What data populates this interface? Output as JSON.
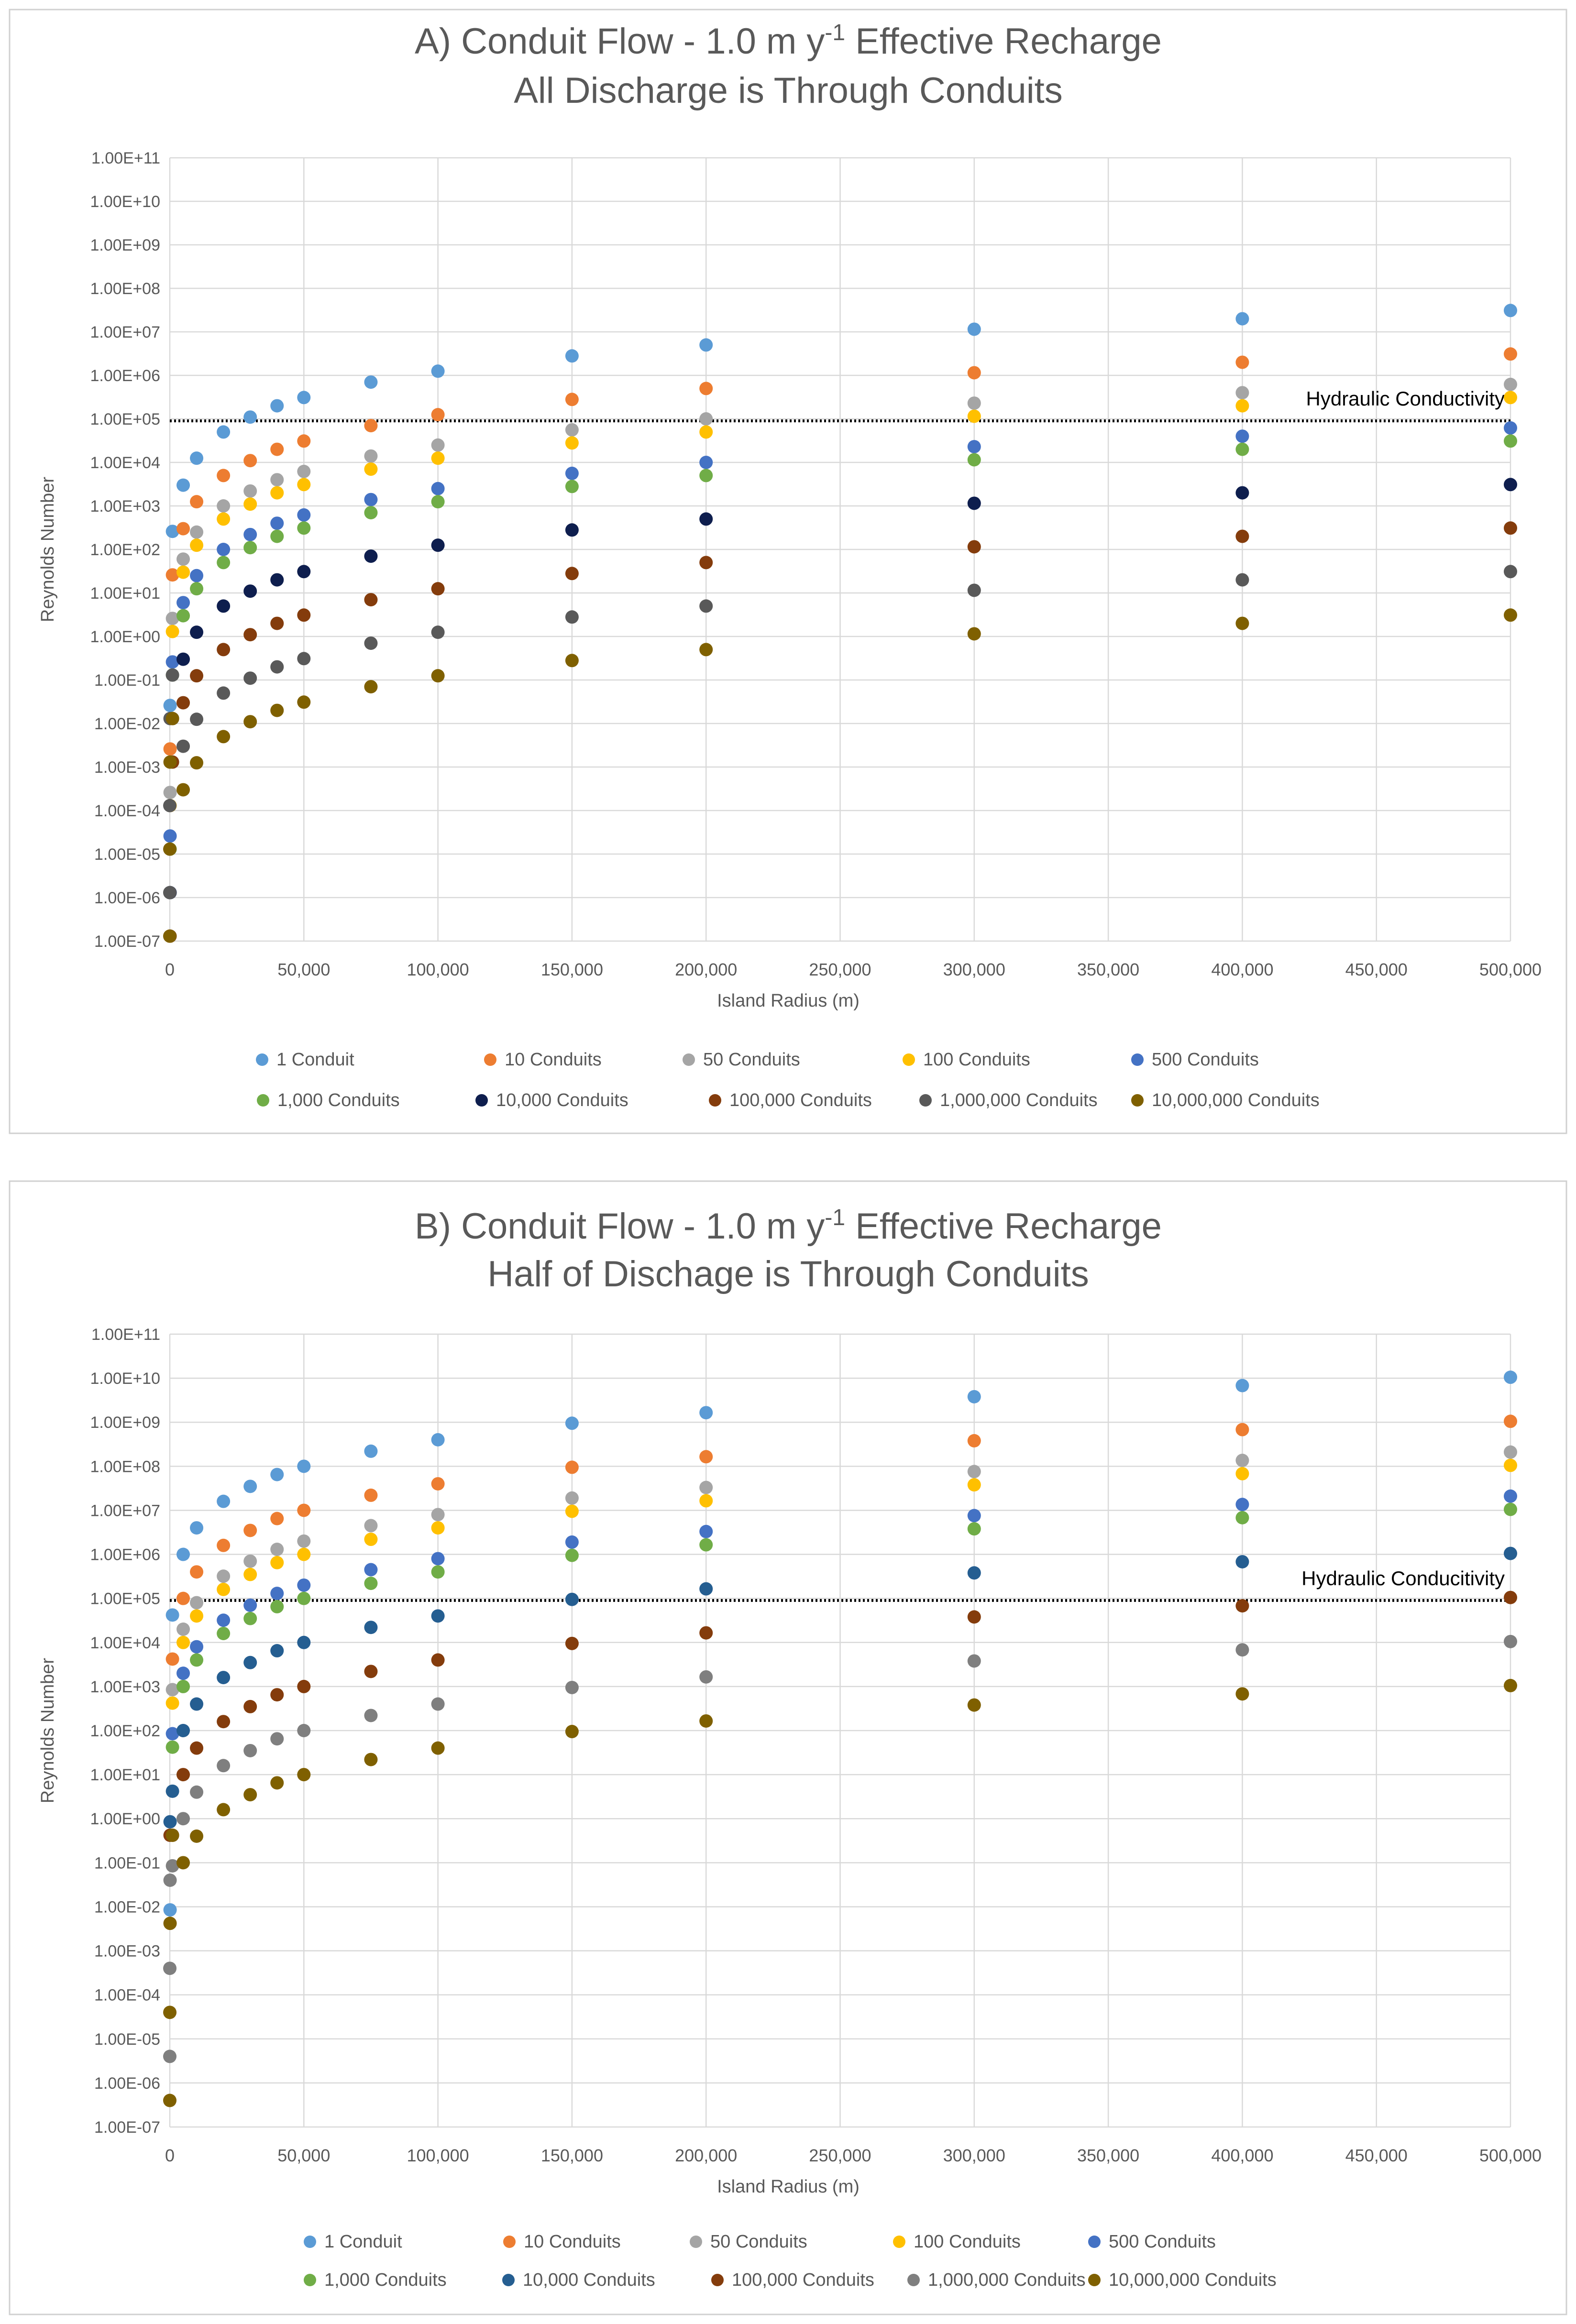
{
  "chart_data": [
    {
      "type": "scatter",
      "title_prefix": "A) Conduit Flow - 1.0 m y",
      "title_superscript": "-1",
      "title_suffix": " Effective Recharge",
      "subtitle": "All Discharge is Through Conduits",
      "xlabel": "Island Radius (m)",
      "ylabel": "Reynolds Number",
      "xlim": [
        0,
        500000
      ],
      "ylim_log10": [
        -7,
        11
      ],
      "x_ticks": [
        0,
        50000,
        100000,
        150000,
        200000,
        250000,
        300000,
        350000,
        400000,
        450000,
        500000
      ],
      "x_tick_labels": [
        "0",
        "50,000",
        "100,000",
        "150,000",
        "200,000",
        "250,000",
        "300,000",
        "350,000",
        "400,000",
        "450,000",
        "500,000"
      ],
      "y_tick_labels": [
        "1.00E+11",
        "1.00E+10",
        "1.00E+09",
        "1.00E+08",
        "1.00E+07",
        "1.00E+06",
        "1.00E+05",
        "1.00E+04",
        "1.00E+03",
        "1.00E+02",
        "1.00E+01",
        "1.00E+00",
        "1.00E-01",
        "1.00E-02",
        "1.00E-03",
        "1.00E-04",
        "1.00E-05",
        "1.00E-06",
        "1.00E-07"
      ],
      "reference_line": {
        "label": "Hydraulic Conductivity",
        "value": 90000
      },
      "x": [
        1,
        10,
        100,
        1000,
        5000,
        10000,
        20000,
        30000,
        40000,
        50000,
        75000,
        100000,
        150000,
        200000,
        300000,
        400000,
        500000
      ],
      "series": [
        {
          "name": "1 Conduit",
          "color": "#5B9BD5",
          "values": [
            null,
            null,
            0.026,
            260,
            3000,
            12500,
            50000,
            110000,
            200000,
            310000,
            700000,
            1250000,
            2800000,
            5000000,
            11500000,
            20000000,
            31000000
          ]
        },
        {
          "name": "10 Conduits",
          "color": "#ED7D31",
          "values": [
            null,
            null,
            0.0026,
            26,
            300,
            1250,
            5000,
            11000,
            20000,
            31000,
            70000,
            125000,
            280000,
            500000,
            1150000,
            2000000,
            3100000
          ]
        },
        {
          "name": "50 Conduits",
          "color": "#A5A5A5",
          "values": [
            null,
            null,
            0.00026,
            2.6,
            60,
            250,
            1000,
            2200,
            4000,
            6200,
            14000,
            25000,
            56000,
            100000,
            230000,
            400000,
            620000
          ]
        },
        {
          "name": "100 Conduits",
          "color": "#FFC000",
          "values": [
            null,
            null,
            0.00013,
            1.3,
            30,
            125,
            500,
            1100,
            2000,
            3100,
            7000,
            12500,
            28000,
            50000,
            115000,
            200000,
            310000
          ]
        },
        {
          "name": "500 Conduits",
          "color": "#4472C4",
          "values": [
            null,
            null,
            2.6e-05,
            0.26,
            6,
            25,
            100,
            220,
            400,
            620,
            1400,
            2500,
            5600,
            10000,
            23000,
            40000,
            62000
          ]
        },
        {
          "name": "1,000 Conduits",
          "color": "#70AD47",
          "values": [
            null,
            null,
            1.3e-05,
            0.13,
            3,
            12.5,
            50,
            110,
            200,
            310,
            700,
            1250,
            2800,
            5000,
            11500,
            20000,
            31000
          ]
        },
        {
          "name": "10,000 Conduits",
          "color": "#0E1E4E",
          "values": [
            null,
            null,
            1.3e-06,
            0.013,
            0.3,
            1.25,
            5,
            11,
            20,
            31,
            70,
            125,
            280,
            500,
            1150,
            2000,
            3100
          ]
        },
        {
          "name": "100,000 Conduits",
          "color": "#843C0C",
          "values": [
            null,
            null,
            1.3e-07,
            0.0013,
            0.03,
            0.125,
            0.5,
            1.1,
            2,
            3.1,
            7,
            12.5,
            28,
            50,
            115,
            200,
            310
          ]
        },
        {
          "name": "1,000,000 Conduits",
          "color": "#595959",
          "values": [
            1.3e-06,
            0.00013,
            0.013,
            0.13,
            0.003,
            0.0125,
            0.05,
            0.11,
            0.2,
            0.31,
            0.7,
            1.25,
            2.8,
            5,
            11.5,
            20,
            31
          ]
        },
        {
          "name": "10,000,000 Conduits",
          "color": "#7F6000",
          "values": [
            1.3e-07,
            1.3e-05,
            0.0013,
            0.013,
            0.0003,
            0.00125,
            0.005,
            0.011,
            0.02,
            0.031,
            0.07,
            0.125,
            0.28,
            0.5,
            1.15,
            2,
            3.1
          ]
        }
      ]
    },
    {
      "type": "scatter",
      "title_prefix": "B) Conduit Flow - 1.0 m y",
      "title_superscript": "-1",
      "title_suffix": " Effective Recharge",
      "subtitle": "Half of Dischage is Through Conduits",
      "xlabel": "Island Radius (m)",
      "ylabel": "Reynolds Number",
      "xlim": [
        0,
        500000
      ],
      "ylim_log10": [
        -7,
        11
      ],
      "x_ticks": [
        0,
        50000,
        100000,
        150000,
        200000,
        250000,
        300000,
        350000,
        400000,
        450000,
        500000
      ],
      "x_tick_labels": [
        "0",
        "50,000",
        "100,000",
        "150,000",
        "200,000",
        "250,000",
        "300,000",
        "350,000",
        "400,000",
        "450,000",
        "500,000"
      ],
      "y_tick_labels": [
        "1.00E+11",
        "1.00E+10",
        "1.00E+09",
        "1.00E+08",
        "1.00E+07",
        "1.00E+06",
        "1.00E+05",
        "1.00E+04",
        "1.00E+03",
        "1.00E+02",
        "1.00E+01",
        "1.00E+00",
        "1.00E-01",
        "1.00E-02",
        "1.00E-03",
        "1.00E-04",
        "1.00E-05",
        "1.00E-06",
        "1.00E-07"
      ],
      "reference_line": {
        "label": "Hydraulic Conducitivity",
        "value": 90000
      },
      "x": [
        1,
        10,
        100,
        1000,
        5000,
        10000,
        20000,
        30000,
        40000,
        50000,
        75000,
        100000,
        150000,
        200000,
        300000,
        400000,
        500000
      ],
      "series": [
        {
          "name": "1 Conduit",
          "color": "#5B9BD5",
          "values": [
            null,
            null,
            0.0085,
            42000,
            1000000,
            4000000,
            16000000,
            35000000,
            65000000,
            100000000,
            220000000,
            400000000,
            950000000,
            1650000000,
            3800000000,
            6800000000,
            10500000000
          ]
        },
        {
          "name": "10 Conduits",
          "color": "#ED7D31",
          "values": [
            null,
            null,
            null,
            4200,
            100000,
            400000,
            1600000,
            3500000,
            6500000,
            10000000,
            22000000,
            40000000,
            95000000,
            165000000,
            380000000,
            680000000,
            1050000000
          ]
        },
        {
          "name": "50 Conduits",
          "color": "#A5A5A5",
          "values": [
            null,
            null,
            null,
            850,
            20000,
            80000,
            320000,
            700000,
            1300000,
            2000000,
            4500000,
            8000000,
            19000000,
            33000000,
            76000000,
            136000000,
            210000000
          ]
        },
        {
          "name": "100 Conduits",
          "color": "#FFC000",
          "values": [
            null,
            null,
            null,
            420,
            10000,
            40000,
            160000,
            350000,
            650000,
            1000000,
            2200000,
            4000000,
            9500000,
            16500000,
            38000000,
            68000000,
            105000000
          ]
        },
        {
          "name": "500 Conduits",
          "color": "#4472C4",
          "values": [
            null,
            null,
            null,
            85,
            2000,
            8000,
            32000,
            70000,
            130000,
            200000,
            450000,
            800000,
            1900000,
            3300000,
            7600000,
            13600000,
            21000000
          ]
        },
        {
          "name": "1,000 Conduits",
          "color": "#70AD47",
          "values": [
            null,
            null,
            null,
            42,
            1000,
            4000,
            16000,
            35000,
            65000,
            100000,
            220000,
            400000,
            950000,
            1650000,
            3800000,
            6800000,
            10500000
          ]
        },
        {
          "name": "10,000 Conduits",
          "color": "#255E91",
          "values": [
            null,
            null,
            0.85,
            4.2,
            100,
            400,
            1600,
            3500,
            6500,
            10000,
            22000,
            40000,
            95000,
            165000,
            380000,
            680000,
            1050000
          ]
        },
        {
          "name": "100,000 Conduits",
          "color": "#843C0C",
          "values": [
            null,
            null,
            0.42,
            0.42,
            10,
            40,
            160,
            350,
            650,
            1000,
            2200,
            4000,
            9500,
            16500,
            38000,
            68000,
            105000
          ]
        },
        {
          "name": "1,000,000 Conduits",
          "color": "#7F7F7F",
          "values": [
            4e-06,
            0.0004,
            0.04,
            0.085,
            1,
            4,
            16,
            35,
            65,
            100,
            220,
            400,
            950,
            1650,
            3800,
            6800,
            10500
          ]
        },
        {
          "name": "10,000,000 Conduits",
          "color": "#7F6000",
          "values": [
            4e-07,
            4e-05,
            0.0042,
            0.42,
            0.1,
            0.4,
            1.6,
            3.5,
            6.5,
            10,
            22,
            40,
            95,
            165,
            380,
            680,
            1050
          ]
        }
      ]
    }
  ]
}
